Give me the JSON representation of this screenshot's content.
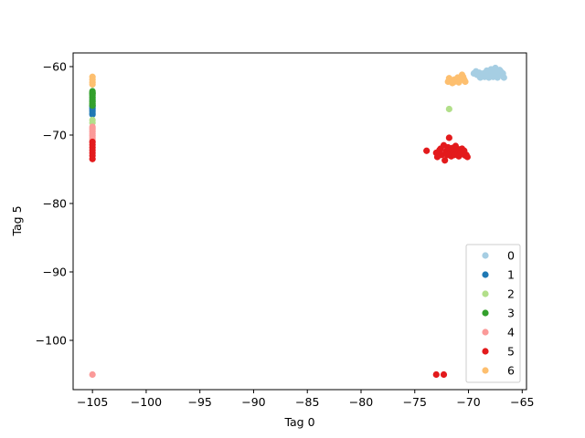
{
  "chart_data": {
    "type": "scatter",
    "title": "",
    "xlabel": "Tag 0",
    "ylabel": "Tag 5",
    "xlim": [
      -106.8,
      -64.6
    ],
    "ylim": [
      -107.2,
      -58.0
    ],
    "xticks": [
      -105,
      -100,
      -95,
      -90,
      -85,
      -80,
      -75,
      -70,
      -65
    ],
    "yticks": [
      -60,
      -70,
      -80,
      -90,
      -100
    ],
    "tick_labels_x": [
      "−105",
      "−100",
      "−95",
      "−90",
      "−85",
      "−80",
      "−75",
      "−70",
      "−65"
    ],
    "tick_labels_y": [
      "−60",
      "−70",
      "−80",
      "−90",
      "−100"
    ],
    "grid": false,
    "legend_position": "lower-right",
    "colors": {
      "0": "#a6cee3",
      "1": "#1f78b4",
      "2": "#b2df8a",
      "3": "#33a02c",
      "4": "#fb9a99",
      "5": "#e31a1c",
      "6": "#fdbf6f"
    },
    "series": [
      {
        "name": "0",
        "points": [
          [
            -105,
            -64.6
          ],
          [
            -105,
            -65.0
          ],
          [
            -105,
            -64.9
          ],
          [
            -69.5,
            -61.0
          ],
          [
            -69.2,
            -61.2
          ],
          [
            -69.0,
            -60.9
          ],
          [
            -68.8,
            -61.4
          ],
          [
            -68.6,
            -61.0
          ],
          [
            -68.4,
            -61.3
          ],
          [
            -68.2,
            -60.8
          ],
          [
            -68.0,
            -61.1
          ],
          [
            -67.8,
            -60.6
          ],
          [
            -67.6,
            -61.2
          ],
          [
            -67.4,
            -60.9
          ],
          [
            -67.2,
            -61.3
          ],
          [
            -67.0,
            -60.7
          ],
          [
            -66.8,
            -61.0
          ],
          [
            -66.7,
            -61.6
          ],
          [
            -68.9,
            -61.6
          ],
          [
            -68.5,
            -61.5
          ],
          [
            -68.1,
            -61.6
          ],
          [
            -67.7,
            -61.5
          ],
          [
            -67.3,
            -61.6
          ],
          [
            -67.9,
            -60.4
          ],
          [
            -67.5,
            -60.2
          ],
          [
            -67.1,
            -60.5
          ],
          [
            -68.3,
            -60.6
          ],
          [
            -69.3,
            -60.7
          ],
          [
            -68.7,
            -61.2
          ],
          [
            -67.6,
            -60.8
          ]
        ]
      },
      {
        "name": "1",
        "points": [
          [
            -105,
            -65.8
          ],
          [
            -105,
            -66.2
          ],
          [
            -105,
            -66.5
          ],
          [
            -105,
            -66.8
          ],
          [
            -105,
            -67.0
          ],
          [
            -105,
            -66.0
          ],
          [
            -105,
            -65.6
          ]
        ]
      },
      {
        "name": "2",
        "points": [
          [
            -105,
            -67.8
          ],
          [
            -105,
            -68.2
          ],
          [
            -105,
            -65.4
          ],
          [
            -105,
            -65.2
          ],
          [
            -71.8,
            -66.2
          ]
        ]
      },
      {
        "name": "3",
        "points": [
          [
            -105,
            -63.6
          ],
          [
            -105,
            -63.9
          ],
          [
            -105,
            -64.2
          ],
          [
            -105,
            -64.5
          ],
          [
            -105,
            -64.8
          ],
          [
            -105,
            -65.1
          ],
          [
            -105,
            -65.4
          ],
          [
            -105,
            -65.7
          ],
          [
            -105,
            -64.0
          ],
          [
            -105,
            -63.8
          ]
        ]
      },
      {
        "name": "4",
        "points": [
          [
            -105,
            -68.8
          ],
          [
            -105,
            -69.2
          ],
          [
            -105,
            -69.5
          ],
          [
            -105,
            -69.8
          ],
          [
            -105,
            -70.1
          ],
          [
            -105,
            -70.4
          ],
          [
            -105,
            -70.7
          ],
          [
            -105,
            -71.0
          ],
          [
            -105,
            -69.0
          ],
          [
            -105,
            -105.0
          ]
        ]
      },
      {
        "name": "5",
        "points": [
          [
            -105,
            -71.0
          ],
          [
            -105,
            -71.4
          ],
          [
            -105,
            -71.8
          ],
          [
            -105,
            -72.2
          ],
          [
            -105,
            -72.6
          ],
          [
            -105,
            -73.0
          ],
          [
            -105,
            -73.5
          ],
          [
            -73.9,
            -72.3
          ],
          [
            -73.0,
            -72.6
          ],
          [
            -72.9,
            -73.2
          ],
          [
            -72.7,
            -72.2
          ],
          [
            -72.5,
            -72.9
          ],
          [
            -72.3,
            -71.5
          ],
          [
            -72.2,
            -73.7
          ],
          [
            -72.1,
            -72.4
          ],
          [
            -72.0,
            -72.9
          ],
          [
            -71.9,
            -71.8
          ],
          [
            -71.8,
            -70.4
          ],
          [
            -71.7,
            -72.6
          ],
          [
            -71.6,
            -73.1
          ],
          [
            -71.5,
            -71.9
          ],
          [
            -71.4,
            -72.5
          ],
          [
            -71.3,
            -72.9
          ],
          [
            -71.2,
            -71.6
          ],
          [
            -71.1,
            -72.2
          ],
          [
            -71.0,
            -72.7
          ],
          [
            -70.9,
            -73.1
          ],
          [
            -70.8,
            -72.1
          ],
          [
            -70.7,
            -72.5
          ],
          [
            -70.6,
            -72.0
          ],
          [
            -70.5,
            -72.8
          ],
          [
            -70.4,
            -72.3
          ],
          [
            -70.3,
            -73.0
          ],
          [
            -70.2,
            -72.9
          ],
          [
            -70.1,
            -73.2
          ],
          [
            -72.6,
            -72.0
          ],
          [
            -71.9,
            -72.9
          ],
          [
            -73.0,
            -105.0
          ],
          [
            -72.3,
            -105.0
          ]
        ]
      },
      {
        "name": "6",
        "points": [
          [
            -105,
            -61.5
          ],
          [
            -105,
            -61.9
          ],
          [
            -105,
            -62.3
          ],
          [
            -105,
            -62.6
          ],
          [
            -71.9,
            -62.2
          ],
          [
            -71.8,
            -61.7
          ],
          [
            -71.6,
            -62.0
          ],
          [
            -71.4,
            -62.3
          ],
          [
            -71.3,
            -61.9
          ],
          [
            -71.1,
            -62.1
          ],
          [
            -71.0,
            -61.6
          ],
          [
            -70.8,
            -62.0
          ],
          [
            -70.6,
            -61.2
          ],
          [
            -70.5,
            -61.5
          ],
          [
            -70.4,
            -61.9
          ],
          [
            -70.3,
            -62.2
          ],
          [
            -70.6,
            -61.8
          ],
          [
            -71.5,
            -62.4
          ],
          [
            -70.9,
            -62.3
          ]
        ]
      }
    ]
  }
}
